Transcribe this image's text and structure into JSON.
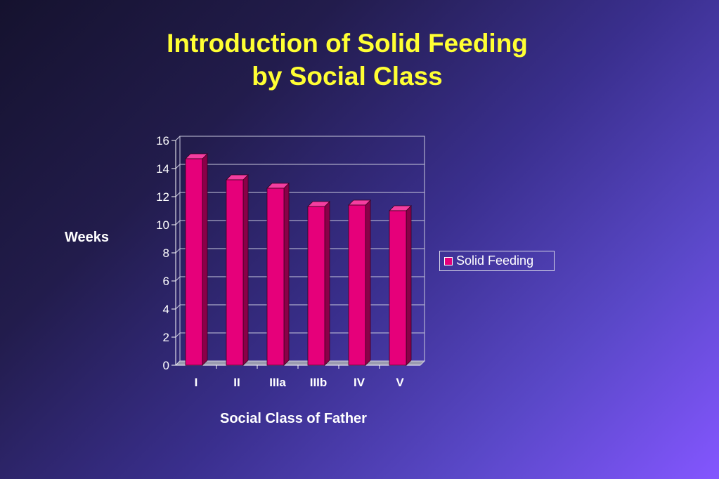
{
  "title_line1": "Introduction of Solid Feeding",
  "title_line2": "by Social Class",
  "chart_data": {
    "type": "bar",
    "categories": [
      "I",
      "II",
      "IIIa",
      "IIIb",
      "IV",
      "V"
    ],
    "series": [
      {
        "name": "Solid Feeding",
        "values": [
          14.7,
          13.2,
          12.6,
          11.3,
          11.4,
          11.0
        ]
      }
    ],
    "xlabel": "Social Class of Father",
    "ylabel": "Weeks",
    "ylim": [
      0,
      16
    ],
    "yticks": [
      0,
      2,
      4,
      6,
      8,
      10,
      12,
      14,
      16
    ],
    "grid": true,
    "legend": "right",
    "bar_color": "#e6007a"
  }
}
